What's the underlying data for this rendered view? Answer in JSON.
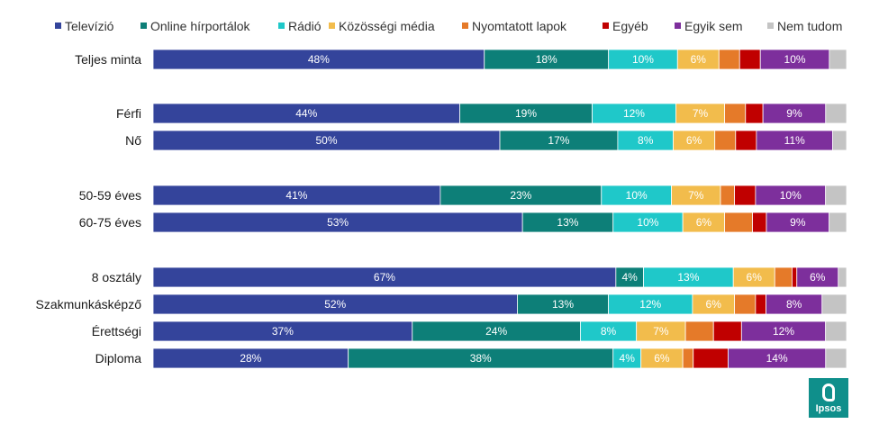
{
  "logo": {
    "text": "Ipsos"
  },
  "chart_data": {
    "type": "bar",
    "orientation": "horizontal",
    "stacked": true,
    "percent_scale": true,
    "legend": {
      "position": "top"
    },
    "categories": [
      "Televízió",
      "Online hírportálok",
      "Rádió",
      "Közösségi média",
      "Nyomtatott lapok",
      "Egyéb",
      "Egyik sem",
      "Nem tudom"
    ],
    "colors": [
      "#34449b",
      "#0d7f78",
      "#1fc8c9",
      "#f2bc4c",
      "#e57a29",
      "#c00000",
      "#7d2f9c",
      "#c4c4c4"
    ],
    "groups": [
      {
        "rows": [
          {
            "label": "Teljes minta",
            "values": [
              48,
              18,
              10,
              6,
              3,
              3,
              10,
              2.5
            ],
            "labels": [
              "48%",
              "18%",
              "10%",
              "6%",
              "",
              "",
              "10%",
              ""
            ]
          }
        ]
      },
      {
        "rows": [
          {
            "label": "Férfi",
            "values": [
              44,
              19,
              12,
              7,
              3,
              2.5,
              9,
              3
            ],
            "labels": [
              "44%",
              "19%",
              "12%",
              "7%",
              "",
              "",
              "9%",
              ""
            ]
          },
          {
            "label": "Nő",
            "values": [
              50,
              17,
              8,
              6,
              3,
              3,
              11,
              2
            ],
            "labels": [
              "50%",
              "17%",
              "8%",
              "6%",
              "",
              "",
              "11%",
              ""
            ]
          }
        ]
      },
      {
        "rows": [
          {
            "label": "50-59 éves",
            "values": [
              41,
              23,
              10,
              7,
              2,
              3,
              10,
              3
            ],
            "labels": [
              "41%",
              "23%",
              "10%",
              "7%",
              "",
              "",
              "10%",
              ""
            ]
          },
          {
            "label": "60-75 éves",
            "values": [
              53,
              13,
              10,
              6,
              4,
              2,
              9,
              2.5
            ],
            "labels": [
              "53%",
              "13%",
              "10%",
              "6%",
              "",
              "",
              "9%",
              ""
            ]
          }
        ]
      },
      {
        "rows": [
          {
            "label": "8 osztály",
            "values": [
              67,
              4,
              13,
              6,
              2.5,
              0.7,
              6,
              1.2
            ],
            "labels": [
              "67%",
              "4%",
              "13%",
              "6%",
              "",
              "",
              "6%",
              ""
            ]
          },
          {
            "label": "Szakmunkásképző",
            "values": [
              52,
              13,
              12,
              6,
              3,
              1.5,
              8,
              3.5
            ],
            "labels": [
              "52%",
              "13%",
              "12%",
              "6%",
              "",
              "",
              "8%",
              ""
            ]
          },
          {
            "label": "Érettségi",
            "values": [
              37,
              24,
              8,
              7,
              4,
              4,
              12,
              3
            ],
            "labels": [
              "37%",
              "24%",
              "8%",
              "7%",
              "",
              "",
              "12%",
              ""
            ]
          },
          {
            "label": "Diploma",
            "values": [
              28,
              38,
              4,
              6,
              1.5,
              5,
              14,
              3
            ],
            "labels": [
              "28%",
              "38%",
              "4%",
              "6%",
              "",
              "",
              "14%",
              ""
            ]
          }
        ]
      }
    ]
  }
}
